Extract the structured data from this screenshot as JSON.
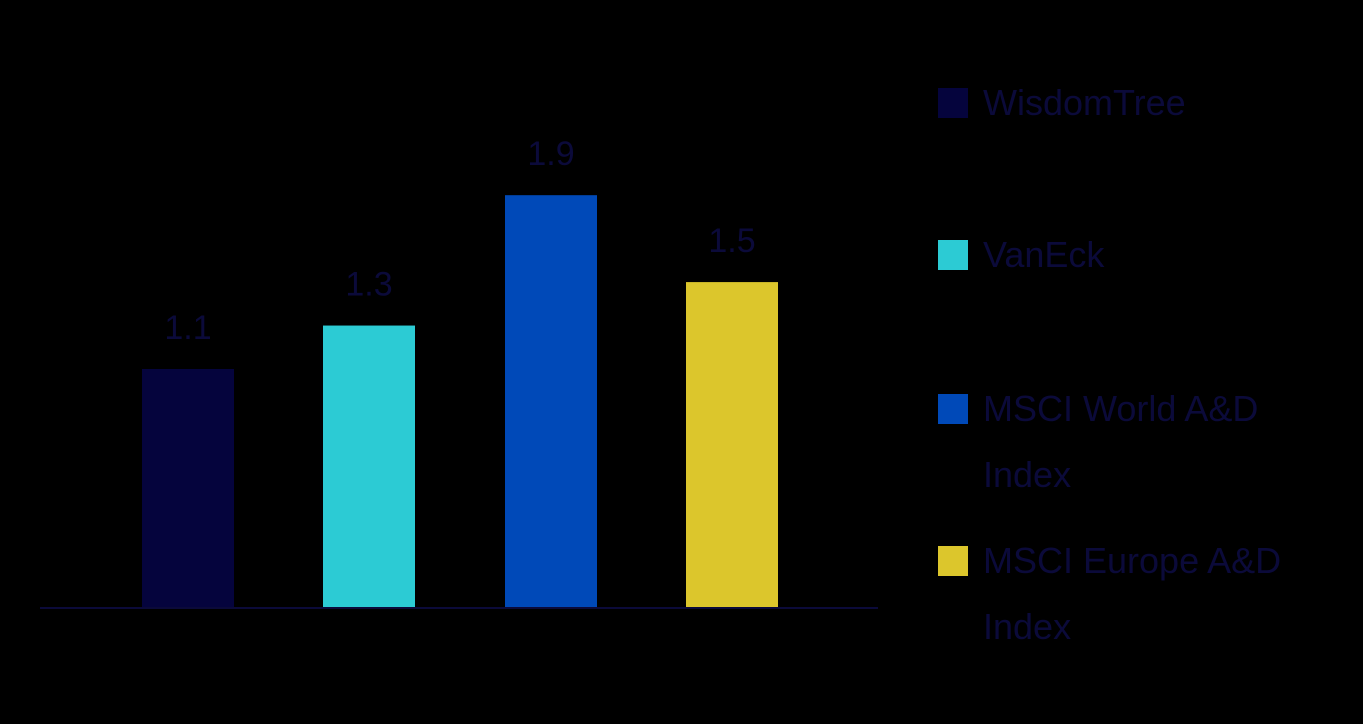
{
  "chart_data": {
    "type": "bar",
    "categories": [
      "WisdomTree",
      "VanEck",
      "MSCI World A&D Index",
      "MSCI Europe A&D Index"
    ],
    "values": [
      1.1,
      1.3,
      1.9,
      1.5
    ],
    "data_labels": [
      "1.1",
      "1.3",
      "1.9",
      "1.5"
    ],
    "colors": [
      "#05043d",
      "#2ccbd4",
      "#0049b8",
      "#dcc62c"
    ],
    "ylim": [
      0,
      2.2
    ],
    "grid": false,
    "legend": {
      "placement": "right",
      "entries": [
        [
          "WisdomTree"
        ],
        [
          "VanEck"
        ],
        [
          "MSCI World A&D",
          "Index"
        ],
        [
          "MSCI Europe A&D",
          "Index"
        ]
      ]
    },
    "axis_color": "#0b0a3a",
    "label_color": "#0b0a3a",
    "background": "#000000"
  }
}
